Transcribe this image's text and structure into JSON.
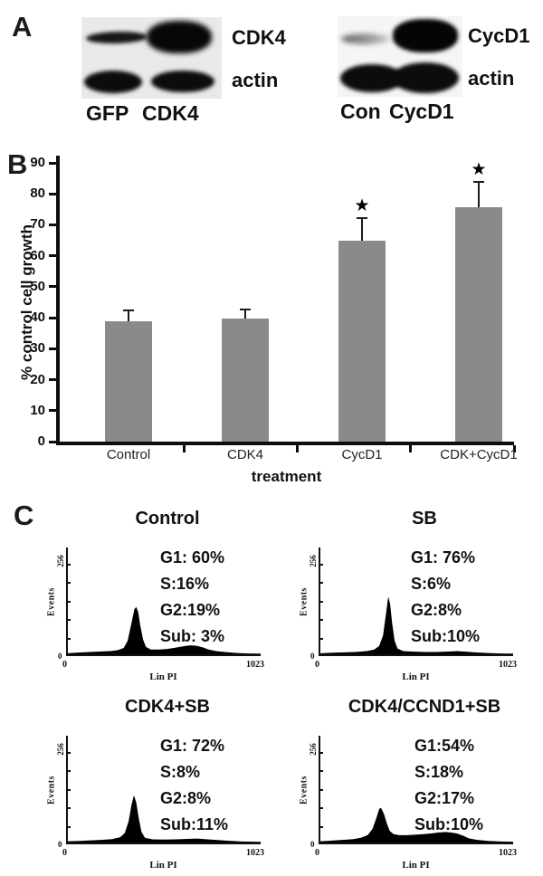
{
  "panels": {
    "a": {
      "label": "A",
      "blots": [
        {
          "target_label": "CDK4",
          "loading_label": "actin",
          "lanes": [
            "GFP",
            "CDK4"
          ],
          "target_band_intensity": [
            "weak",
            "strong"
          ],
          "loading_band_intensity": [
            "strong",
            "strong"
          ]
        },
        {
          "target_label": "CycD1",
          "loading_label": "actin",
          "lanes": [
            "Con",
            "CycD1"
          ],
          "target_band_intensity": [
            "faint",
            "strong"
          ],
          "loading_band_intensity": [
            "strong",
            "strong"
          ]
        }
      ]
    },
    "b": {
      "label": "B"
    },
    "c": {
      "label": "C"
    }
  },
  "chart_data": [
    {
      "type": "bar",
      "title": "",
      "categories": [
        "Control",
        "CDK4",
        "CycD1",
        "CDK+CycD1"
      ],
      "values": [
        38.8,
        39.8,
        64.8,
        75.7
      ],
      "errors": [
        3.7,
        3.0,
        7.5,
        8.3
      ],
      "significant": [
        false,
        false,
        true,
        true
      ],
      "star_symbol": "★",
      "xlabel": "treatment",
      "ylabel": "% control cell growth",
      "ylim": [
        0,
        90
      ],
      "ytick_step": 10,
      "grid": false,
      "bar_color": "#8a8a8a"
    },
    {
      "type": "area",
      "title": "Control",
      "xlabel": "Lin PI",
      "ylabel": "Events",
      "x_min_label": "0",
      "x_max_label": "1023",
      "y_min_label": "0",
      "y_max_label": "256",
      "stats": [
        "G1: 60%",
        "S:16%",
        "G2:19%",
        "Sub: 3%"
      ],
      "profile": [
        [
          0.0,
          0.01
        ],
        [
          0.04,
          0.015
        ],
        [
          0.1,
          0.02
        ],
        [
          0.16,
          0.025
        ],
        [
          0.22,
          0.03
        ],
        [
          0.26,
          0.04
        ],
        [
          0.29,
          0.06
        ],
        [
          0.31,
          0.13
        ],
        [
          0.33,
          0.3
        ],
        [
          0.345,
          0.43
        ],
        [
          0.355,
          0.45
        ],
        [
          0.365,
          0.4
        ],
        [
          0.375,
          0.28
        ],
        [
          0.39,
          0.14
        ],
        [
          0.405,
          0.07
        ],
        [
          0.43,
          0.045
        ],
        [
          0.47,
          0.045
        ],
        [
          0.51,
          0.05
        ],
        [
          0.55,
          0.06
        ],
        [
          0.58,
          0.07
        ],
        [
          0.61,
          0.08
        ],
        [
          0.64,
          0.085
        ],
        [
          0.67,
          0.08
        ],
        [
          0.7,
          0.065
        ],
        [
          0.73,
          0.045
        ],
        [
          0.77,
          0.03
        ],
        [
          0.82,
          0.02
        ],
        [
          0.88,
          0.012
        ],
        [
          0.94,
          0.008
        ],
        [
          1.0,
          0.006
        ]
      ]
    },
    {
      "type": "area",
      "title": "SB",
      "xlabel": "Lin PI",
      "ylabel": "Events",
      "x_min_label": "0",
      "x_max_label": "1023",
      "y_min_label": "0",
      "y_max_label": "256",
      "stats": [
        "G1: 76%",
        "S:6%",
        "G2:8%",
        "Sub:10%"
      ],
      "profile": [
        [
          0.0,
          0.01
        ],
        [
          0.06,
          0.015
        ],
        [
          0.12,
          0.018
        ],
        [
          0.18,
          0.022
        ],
        [
          0.24,
          0.03
        ],
        [
          0.28,
          0.045
        ],
        [
          0.305,
          0.08
        ],
        [
          0.325,
          0.18
        ],
        [
          0.34,
          0.38
        ],
        [
          0.352,
          0.55
        ],
        [
          0.362,
          0.48
        ],
        [
          0.372,
          0.3
        ],
        [
          0.385,
          0.13
        ],
        [
          0.4,
          0.055
        ],
        [
          0.43,
          0.03
        ],
        [
          0.48,
          0.025
        ],
        [
          0.54,
          0.022
        ],
        [
          0.6,
          0.022
        ],
        [
          0.66,
          0.025
        ],
        [
          0.71,
          0.03
        ],
        [
          0.75,
          0.025
        ],
        [
          0.8,
          0.018
        ],
        [
          0.87,
          0.012
        ],
        [
          0.94,
          0.008
        ],
        [
          1.0,
          0.006
        ]
      ]
    },
    {
      "type": "area",
      "title": "CDK4+SB",
      "xlabel": "Lin PI",
      "ylabel": "Events",
      "x_min_label": "0",
      "x_max_label": "1023",
      "y_min_label": "0",
      "y_max_label": "256",
      "stats": [
        "G1: 72%",
        "S:8%",
        "G2:8%",
        "Sub:11%"
      ],
      "profile": [
        [
          0.0,
          0.012
        ],
        [
          0.06,
          0.015
        ],
        [
          0.12,
          0.02
        ],
        [
          0.18,
          0.025
        ],
        [
          0.23,
          0.032
        ],
        [
          0.27,
          0.05
        ],
        [
          0.295,
          0.09
        ],
        [
          0.315,
          0.2
        ],
        [
          0.33,
          0.36
        ],
        [
          0.343,
          0.45
        ],
        [
          0.355,
          0.38
        ],
        [
          0.368,
          0.23
        ],
        [
          0.382,
          0.1
        ],
        [
          0.4,
          0.045
        ],
        [
          0.44,
          0.03
        ],
        [
          0.5,
          0.028
        ],
        [
          0.56,
          0.03
        ],
        [
          0.62,
          0.035
        ],
        [
          0.67,
          0.038
        ],
        [
          0.71,
          0.032
        ],
        [
          0.76,
          0.025
        ],
        [
          0.82,
          0.018
        ],
        [
          0.9,
          0.01
        ],
        [
          1.0,
          0.006
        ]
      ]
    },
    {
      "type": "area",
      "title": "CDK4/CCND1+SB",
      "xlabel": "Lin PI",
      "ylabel": "Events",
      "x_min_label": "0",
      "x_max_label": "1023",
      "y_min_label": "0",
      "y_max_label": "256",
      "stats": [
        "G1:54%",
        "S:18%",
        "G2:17%",
        "Sub:10%"
      ],
      "profile": [
        [
          0.0,
          0.012
        ],
        [
          0.06,
          0.018
        ],
        [
          0.12,
          0.025
        ],
        [
          0.17,
          0.032
        ],
        [
          0.21,
          0.045
        ],
        [
          0.245,
          0.07
        ],
        [
          0.27,
          0.13
        ],
        [
          0.29,
          0.23
        ],
        [
          0.305,
          0.32
        ],
        [
          0.315,
          0.33
        ],
        [
          0.33,
          0.27
        ],
        [
          0.345,
          0.18
        ],
        [
          0.36,
          0.11
        ],
        [
          0.38,
          0.08
        ],
        [
          0.41,
          0.07
        ],
        [
          0.45,
          0.07
        ],
        [
          0.49,
          0.075
        ],
        [
          0.53,
          0.08
        ],
        [
          0.57,
          0.085
        ],
        [
          0.61,
          0.095
        ],
        [
          0.65,
          0.1
        ],
        [
          0.68,
          0.095
        ],
        [
          0.71,
          0.085
        ],
        [
          0.74,
          0.065
        ],
        [
          0.77,
          0.04
        ],
        [
          0.81,
          0.025
        ],
        [
          0.87,
          0.015
        ],
        [
          0.94,
          0.01
        ],
        [
          1.0,
          0.008
        ]
      ]
    }
  ]
}
